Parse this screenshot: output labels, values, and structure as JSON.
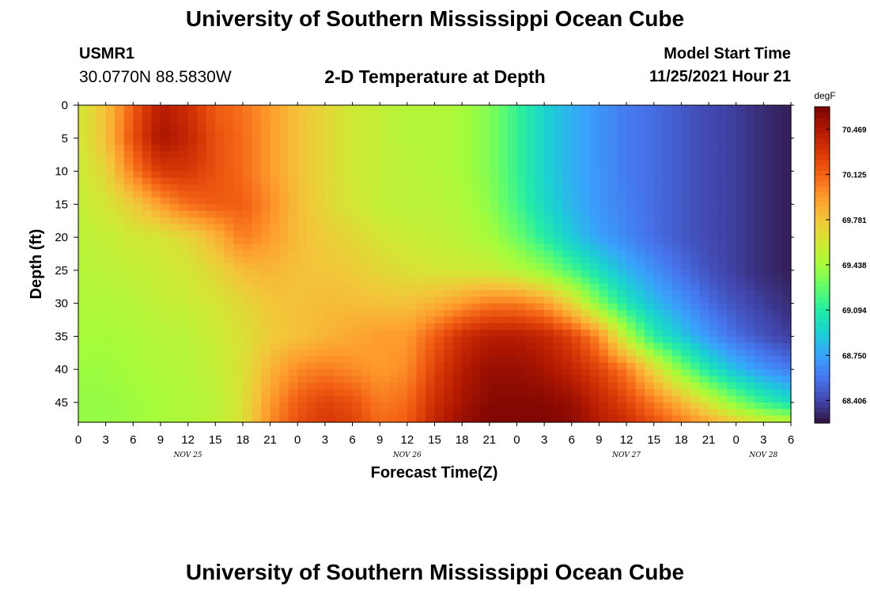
{
  "header": {
    "title": "University of Southern Mississippi Ocean Cube",
    "station_id": "USMR1",
    "coords": "30.0770N  88.5830W",
    "plot_title": "2-D Temperature at Depth",
    "model_label": "Model Start Time",
    "model_time": "11/25/2021 Hour 21"
  },
  "footer": {
    "title": "University of Southern Mississippi Ocean Cube"
  },
  "chart_data": {
    "type": "heatmap",
    "title": "2-D Temperature at Depth",
    "xlabel": "Forecast Time(Z)",
    "ylabel": "Depth (ft)",
    "x_unit": "hours since Nov 25 00Z",
    "xlim": [
      0,
      78
    ],
    "ylim": [
      48,
      0
    ],
    "x_ticks": [
      0,
      3,
      6,
      9,
      12,
      15,
      18,
      21,
      24,
      27,
      30,
      33,
      36,
      39,
      42,
      45,
      48,
      51,
      54,
      57,
      60,
      63,
      66,
      69,
      72,
      75,
      78
    ],
    "x_tick_labels": [
      "0",
      "3",
      "6",
      "9",
      "12",
      "15",
      "18",
      "21",
      "0",
      "3",
      "6",
      "9",
      "12",
      "15",
      "18",
      "21",
      "0",
      "3",
      "6",
      "9",
      "12",
      "15",
      "18",
      "21",
      "0",
      "3",
      "6"
    ],
    "date_labels": [
      {
        "label": "NOV 25",
        "at": 12
      },
      {
        "label": "NOV 26",
        "at": 36
      },
      {
        "label": "NOV 27",
        "at": 60
      },
      {
        "label": "NOV 28",
        "at": 75
      }
    ],
    "y_ticks": [
      0,
      5,
      10,
      15,
      20,
      25,
      30,
      35,
      40,
      45
    ],
    "y_tick_labels": [
      "0",
      "5",
      "10",
      "15",
      "20",
      "25",
      "30",
      "35",
      "40",
      "45"
    ],
    "colorbar": {
      "unit": "degF",
      "min": 68.235,
      "max": 70.64,
      "tick_values": [
        70.469,
        70.125,
        69.781,
        69.438,
        69.094,
        68.75,
        68.406
      ],
      "tick_labels": [
        "70.469",
        "70.125",
        "69.781",
        "69.438",
        "69.094",
        "68.750",
        "68.406"
      ]
    },
    "grid_depths": [
      0,
      5,
      10,
      15,
      20,
      25,
      30,
      35,
      40,
      45,
      48
    ],
    "grid_times": [
      0,
      3,
      6,
      9,
      12,
      15,
      18,
      21,
      24,
      27,
      30,
      33,
      36,
      39,
      42,
      45,
      48,
      51,
      54,
      57,
      60,
      63,
      66,
      69,
      72,
      75,
      78
    ],
    "values": [
      [
        69.6,
        69.8,
        70.15,
        70.45,
        70.35,
        70.15,
        70.08,
        69.95,
        69.8,
        69.7,
        69.6,
        69.55,
        69.5,
        69.5,
        69.45,
        69.35,
        69.15,
        68.95,
        68.8,
        68.7,
        68.6,
        68.55,
        68.48,
        68.42,
        68.38,
        68.32,
        68.28
      ],
      [
        69.6,
        69.8,
        70.2,
        70.5,
        70.4,
        70.2,
        70.1,
        69.95,
        69.8,
        69.7,
        69.6,
        69.55,
        69.5,
        69.5,
        69.45,
        69.35,
        69.15,
        68.95,
        68.8,
        68.7,
        68.6,
        68.55,
        68.48,
        68.42,
        68.38,
        68.32,
        68.28
      ],
      [
        69.58,
        69.7,
        70.05,
        70.3,
        70.3,
        70.2,
        70.1,
        69.95,
        69.8,
        69.7,
        69.6,
        69.55,
        69.52,
        69.5,
        69.45,
        69.35,
        69.15,
        68.95,
        68.8,
        68.7,
        68.6,
        68.55,
        68.48,
        68.42,
        68.38,
        68.32,
        68.28
      ],
      [
        69.55,
        69.62,
        69.75,
        69.95,
        70.1,
        70.15,
        70.15,
        70.0,
        69.82,
        69.7,
        69.62,
        69.55,
        69.52,
        69.52,
        69.48,
        69.38,
        69.18,
        68.98,
        68.82,
        68.7,
        68.62,
        68.55,
        68.48,
        68.42,
        68.38,
        68.32,
        68.28
      ],
      [
        69.52,
        69.55,
        69.6,
        69.62,
        69.7,
        69.85,
        70.05,
        69.95,
        69.82,
        69.75,
        69.7,
        69.62,
        69.58,
        69.55,
        69.52,
        69.45,
        69.3,
        69.1,
        68.9,
        68.75,
        68.65,
        68.55,
        68.48,
        68.42,
        68.38,
        68.32,
        68.28
      ],
      [
        69.5,
        69.52,
        69.55,
        69.58,
        69.62,
        69.7,
        69.82,
        69.85,
        69.8,
        69.78,
        69.75,
        69.7,
        69.65,
        69.62,
        69.6,
        69.58,
        69.5,
        69.4,
        69.2,
        69.0,
        68.82,
        68.68,
        68.55,
        68.45,
        68.38,
        68.32,
        68.28
      ],
      [
        69.48,
        69.48,
        69.5,
        69.55,
        69.58,
        69.62,
        69.7,
        69.78,
        69.8,
        69.82,
        69.82,
        69.8,
        69.8,
        69.85,
        69.95,
        70.05,
        70.05,
        69.95,
        69.7,
        69.35,
        69.05,
        68.85,
        68.7,
        68.55,
        68.45,
        68.38,
        68.32
      ],
      [
        69.45,
        69.45,
        69.47,
        69.5,
        69.52,
        69.58,
        69.65,
        69.75,
        69.8,
        69.85,
        69.9,
        69.95,
        69.95,
        70.15,
        70.35,
        70.45,
        70.45,
        70.4,
        70.25,
        70.0,
        69.5,
        69.1,
        68.9,
        68.7,
        68.55,
        68.45,
        68.38
      ],
      [
        69.42,
        69.42,
        69.45,
        69.48,
        69.5,
        69.55,
        69.65,
        69.85,
        70.0,
        70.05,
        70.0,
        69.95,
        70.0,
        70.25,
        70.45,
        70.55,
        70.55,
        70.5,
        70.4,
        70.25,
        70.05,
        69.7,
        69.35,
        69.05,
        68.85,
        68.7,
        68.6
      ],
      [
        69.4,
        69.4,
        69.42,
        69.45,
        69.48,
        69.52,
        69.65,
        69.95,
        70.15,
        70.25,
        70.2,
        70.05,
        70.1,
        70.35,
        70.5,
        70.6,
        70.6,
        70.6,
        70.55,
        70.4,
        70.25,
        70.05,
        69.85,
        69.6,
        69.35,
        69.15,
        69.0
      ],
      [
        69.4,
        69.4,
        69.42,
        69.45,
        69.48,
        69.52,
        69.65,
        70.0,
        70.2,
        70.3,
        70.25,
        70.1,
        70.15,
        70.4,
        70.55,
        70.62,
        70.62,
        70.62,
        70.58,
        70.45,
        70.35,
        70.2,
        70.05,
        69.9,
        69.75,
        69.6,
        69.55
      ]
    ]
  }
}
